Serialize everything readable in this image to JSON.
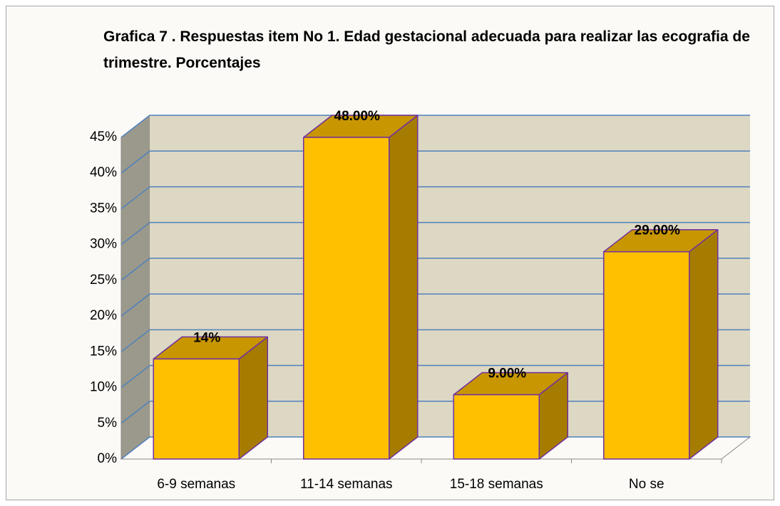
{
  "chart_data": {
    "type": "bar3d",
    "title": "Grafica 7 . Respuestas item No 1. Edad gestacional adecuada para realizar las ecografia de trimestre. Porcentajes",
    "categories": [
      "6-9 semanas",
      "11-14 semanas",
      "15-18 semanas",
      "No se"
    ],
    "values": [
      14,
      48,
      9,
      29
    ],
    "value_labels": [
      "14%",
      "48.00%",
      "9.00%",
      "29.00%"
    ],
    "color": "#ffc000",
    "ylim": [
      0,
      45
    ],
    "yticks": [
      {
        "value": 0,
        "label": "0%"
      },
      {
        "value": 5,
        "label": "5%"
      },
      {
        "value": 10,
        "label": "10%"
      },
      {
        "value": 15,
        "label": "15%"
      },
      {
        "value": 20,
        "label": "20%"
      },
      {
        "value": 25,
        "label": "25%"
      },
      {
        "value": 30,
        "label": "30%"
      },
      {
        "value": 35,
        "label": "35%"
      },
      {
        "value": 40,
        "label": "40%"
      },
      {
        "value": 45,
        "label": "45%"
      }
    ],
    "grid": true
  }
}
